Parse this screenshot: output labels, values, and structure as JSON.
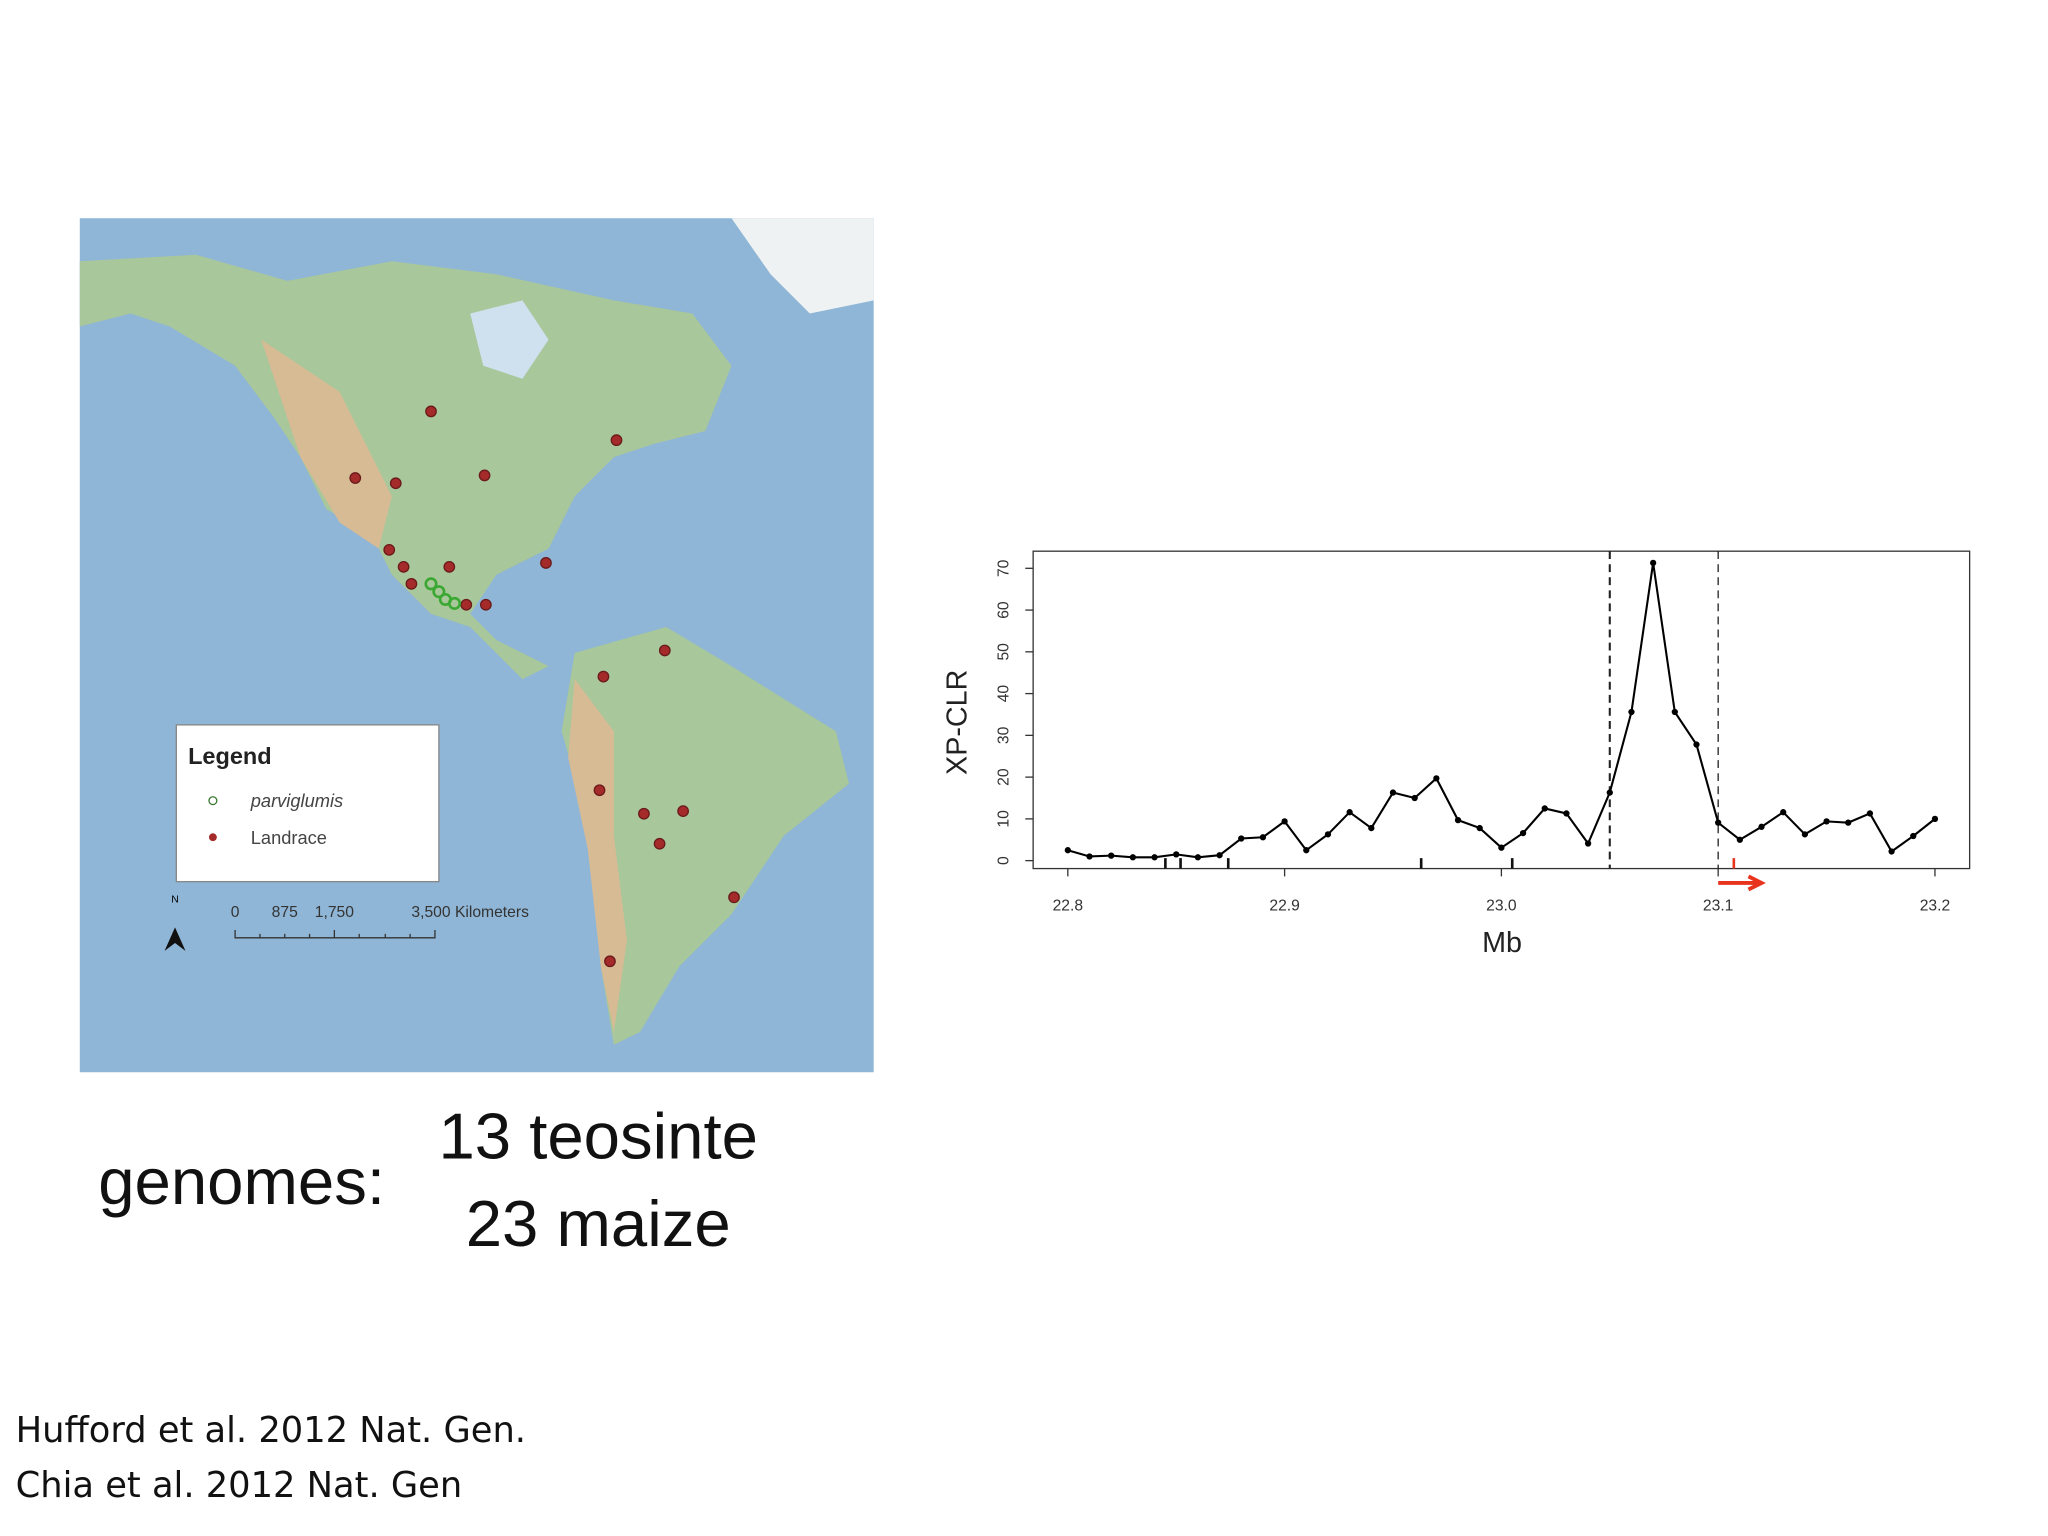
{
  "map": {
    "legend_title": "Legend",
    "legend_items": [
      "parviglumis",
      "Landrace"
    ],
    "north": "N",
    "scale_labels": [
      "0",
      "875",
      "1,750",
      "3,500 Kilometers"
    ]
  },
  "caption": {
    "label": "genomes:",
    "lines": [
      "13 teosinte",
      "23 maize"
    ]
  },
  "citations": [
    "Hufford et al. 2012 Nat. Gen.",
    "Chia et al. 2012 Nat. Gen"
  ],
  "chart_data": {
    "type": "line",
    "xlabel": "Mb",
    "ylabel": "XP-CLR",
    "color": "#000000",
    "x": [
      22.8,
      22.81,
      22.82,
      22.83,
      22.84,
      22.85,
      22.86,
      22.87,
      22.88,
      22.89,
      22.9,
      22.91,
      22.92,
      22.93,
      22.94,
      22.95,
      22.96,
      22.97,
      22.98,
      22.99,
      23.0,
      23.01,
      23.02,
      23.03,
      23.04,
      23.05,
      23.06,
      23.07,
      23.08,
      23.09,
      23.1,
      23.11,
      23.12,
      23.13,
      23.14,
      23.15,
      23.16,
      23.17,
      23.18,
      23.19,
      23.2
    ],
    "values": [
      2.5,
      1,
      1.2,
      0.8,
      0.8,
      1.5,
      0.8,
      1.3,
      5.3,
      5.6,
      9.4,
      2.5,
      6.3,
      11.6,
      7.8,
      16.3,
      15,
      19.7,
      9.7,
      7.8,
      3.1,
      6.6,
      12.5,
      11.3,
      4.1,
      16.3,
      35.6,
      71.3,
      35.6,
      27.8,
      9.1,
      5,
      8.1,
      11.6,
      6.3,
      9.4,
      9.1,
      11.3,
      2.2,
      5.9,
      10
    ],
    "xlim": [
      22.784,
      23.216
    ],
    "ylim": [
      -1.9,
      74.1
    ],
    "xticks": [
      22.8,
      22.9,
      {
        "value": 23,
        "label": "23.0"
      },
      23.1,
      23.2
    ],
    "yticks": [
      0,
      10,
      20,
      30,
      40,
      50,
      60,
      70
    ],
    "vlines": [
      23.05,
      23.1
    ],
    "rug": [
      22.845,
      22.852,
      22.874,
      22.963,
      23.005
    ],
    "gene": {
      "start": 23.1,
      "end": 23.12,
      "color": "#e8341c"
    }
  }
}
